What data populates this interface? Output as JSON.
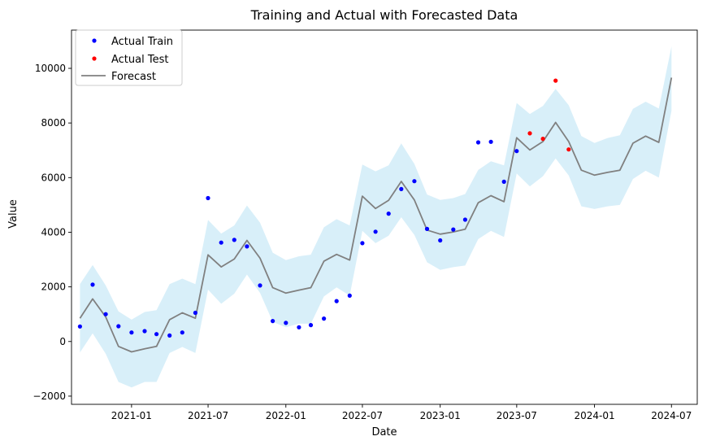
{
  "chart_data": {
    "type": "line",
    "title": "Training and Actual with Forecasted Data",
    "xlabel": "Date",
    "ylabel": "Value",
    "xlim": [
      "2020-08-12",
      "2024-08-31"
    ],
    "ylim": [
      -2300,
      11400
    ],
    "x_ticks": [
      "2021-01-01",
      "2021-07-01",
      "2022-01-01",
      "2022-07-01",
      "2023-01-01",
      "2023-07-01",
      "2024-01-01",
      "2024-07-01"
    ],
    "x_tick_labels": [
      "2021-01",
      "2021-07",
      "2022-01",
      "2022-07",
      "2023-01",
      "2023-07",
      "2024-01",
      "2024-07"
    ],
    "y_ticks": [
      -2000,
      0,
      2000,
      4000,
      6000,
      8000,
      10000
    ],
    "y_tick_labels": [
      "−2000",
      "0",
      "2000",
      "4000",
      "6000",
      "8000",
      "10000"
    ],
    "grid": false,
    "legend": {
      "position": "top-left",
      "entries": [
        {
          "label": "Actual Train",
          "marker": "dot",
          "color": "#0000ff"
        },
        {
          "label": "Actual Test",
          "marker": "dot",
          "color": "#ff0000"
        },
        {
          "label": "Forecast",
          "marker": "line",
          "color": "#808080"
        }
      ]
    },
    "series": [
      {
        "name": "Actual Train",
        "kind": "scatter",
        "color": "#0000ff",
        "points": [
          {
            "x": "2020-09-01",
            "y": 550
          },
          {
            "x": "2020-10-01",
            "y": 2080
          },
          {
            "x": "2020-11-01",
            "y": 1000
          },
          {
            "x": "2020-12-01",
            "y": 560
          },
          {
            "x": "2021-01-01",
            "y": 330
          },
          {
            "x": "2021-02-01",
            "y": 380
          },
          {
            "x": "2021-03-01",
            "y": 270
          },
          {
            "x": "2021-04-01",
            "y": 220
          },
          {
            "x": "2021-05-01",
            "y": 330
          },
          {
            "x": "2021-06-01",
            "y": 1050
          },
          {
            "x": "2021-07-01",
            "y": 5250
          },
          {
            "x": "2021-08-01",
            "y": 3620
          },
          {
            "x": "2021-09-01",
            "y": 3720
          },
          {
            "x": "2021-10-01",
            "y": 3480
          },
          {
            "x": "2021-11-01",
            "y": 2050
          },
          {
            "x": "2021-12-01",
            "y": 750
          },
          {
            "x": "2022-01-01",
            "y": 680
          },
          {
            "x": "2022-02-01",
            "y": 520
          },
          {
            "x": "2022-03-01",
            "y": 600
          },
          {
            "x": "2022-04-01",
            "y": 840
          },
          {
            "x": "2022-05-01",
            "y": 1480
          },
          {
            "x": "2022-06-01",
            "y": 1680
          },
          {
            "x": "2022-07-01",
            "y": 3600
          },
          {
            "x": "2022-08-01",
            "y": 4020
          },
          {
            "x": "2022-09-01",
            "y": 4680
          },
          {
            "x": "2022-10-01",
            "y": 5580
          },
          {
            "x": "2022-11-01",
            "y": 5870
          },
          {
            "x": "2022-12-01",
            "y": 4120
          },
          {
            "x": "2023-01-01",
            "y": 3700
          },
          {
            "x": "2023-02-01",
            "y": 4100
          },
          {
            "x": "2023-03-01",
            "y": 4460
          },
          {
            "x": "2023-04-01",
            "y": 7290
          },
          {
            "x": "2023-05-01",
            "y": 7310
          },
          {
            "x": "2023-06-01",
            "y": 5850
          },
          {
            "x": "2023-07-01",
            "y": 6970
          }
        ]
      },
      {
        "name": "Actual Test",
        "kind": "scatter",
        "color": "#ff0000",
        "points": [
          {
            "x": "2023-08-01",
            "y": 7620
          },
          {
            "x": "2023-09-01",
            "y": 7420
          },
          {
            "x": "2023-10-01",
            "y": 9550
          },
          {
            "x": "2023-11-01",
            "y": 7030
          }
        ]
      },
      {
        "name": "Forecast",
        "kind": "line",
        "color": "#808080",
        "band_color": "#87ceeb",
        "points": [
          {
            "x": "2020-09-01",
            "y": 850,
            "lower": -400,
            "upper": 2100
          },
          {
            "x": "2020-10-01",
            "y": 1560,
            "lower": 300,
            "upper": 2800
          },
          {
            "x": "2020-11-01",
            "y": 900,
            "lower": -450,
            "upper": 2050
          },
          {
            "x": "2020-12-01",
            "y": -180,
            "lower": -1480,
            "upper": 1100
          },
          {
            "x": "2021-01-01",
            "y": -380,
            "lower": -1680,
            "upper": 800
          },
          {
            "x": "2021-02-01",
            "y": -270,
            "lower": -1480,
            "upper": 1080
          },
          {
            "x": "2021-03-01",
            "y": -180,
            "lower": -1480,
            "upper": 1150
          },
          {
            "x": "2021-04-01",
            "y": 800,
            "lower": -420,
            "upper": 2100
          },
          {
            "x": "2021-05-01",
            "y": 1050,
            "lower": -200,
            "upper": 2300
          },
          {
            "x": "2021-06-01",
            "y": 850,
            "lower": -420,
            "upper": 2100
          },
          {
            "x": "2021-07-01",
            "y": 3170,
            "lower": 1900,
            "upper": 4450
          },
          {
            "x": "2021-08-01",
            "y": 2730,
            "lower": 1380,
            "upper": 3950
          },
          {
            "x": "2021-09-01",
            "y": 3020,
            "lower": 1750,
            "upper": 4250
          },
          {
            "x": "2021-10-01",
            "y": 3700,
            "lower": 2450,
            "upper": 4980
          },
          {
            "x": "2021-11-01",
            "y": 3050,
            "lower": 1780,
            "upper": 4350
          },
          {
            "x": "2021-12-01",
            "y": 1970,
            "lower": 720,
            "upper": 3250
          },
          {
            "x": "2022-01-01",
            "y": 1770,
            "lower": 520,
            "upper": 2980
          },
          {
            "x": "2022-02-01",
            "y": 1880,
            "lower": 650,
            "upper": 3120
          },
          {
            "x": "2022-03-01",
            "y": 1970,
            "lower": 650,
            "upper": 3180
          },
          {
            "x": "2022-04-01",
            "y": 2940,
            "lower": 1650,
            "upper": 4180
          },
          {
            "x": "2022-05-01",
            "y": 3190,
            "lower": 1980,
            "upper": 4480
          },
          {
            "x": "2022-06-01",
            "y": 2980,
            "lower": 1680,
            "upper": 4250
          },
          {
            "x": "2022-07-01",
            "y": 5320,
            "lower": 4050,
            "upper": 6480
          },
          {
            "x": "2022-08-01",
            "y": 4870,
            "lower": 3600,
            "upper": 6230
          },
          {
            "x": "2022-09-01",
            "y": 5170,
            "lower": 3870,
            "upper": 6450
          },
          {
            "x": "2022-10-01",
            "y": 5860,
            "lower": 4550,
            "upper": 7250
          },
          {
            "x": "2022-11-01",
            "y": 5180,
            "lower": 3900,
            "upper": 6500
          },
          {
            "x": "2022-12-01",
            "y": 4080,
            "lower": 2900,
            "upper": 5380
          },
          {
            "x": "2023-01-01",
            "y": 3930,
            "lower": 2620,
            "upper": 5180
          },
          {
            "x": "2023-02-01",
            "y": 4010,
            "lower": 2720,
            "upper": 5250
          },
          {
            "x": "2023-03-01",
            "y": 4110,
            "lower": 2780,
            "upper": 5400
          },
          {
            "x": "2023-04-01",
            "y": 5080,
            "lower": 3750,
            "upper": 6280
          },
          {
            "x": "2023-05-01",
            "y": 5340,
            "lower": 4050,
            "upper": 6600
          },
          {
            "x": "2023-06-01",
            "y": 5120,
            "lower": 3830,
            "upper": 6450
          },
          {
            "x": "2023-07-01",
            "y": 7460,
            "lower": 6150,
            "upper": 8730
          },
          {
            "x": "2023-08-01",
            "y": 7010,
            "lower": 5680,
            "upper": 8330
          },
          {
            "x": "2023-09-01",
            "y": 7320,
            "lower": 6050,
            "upper": 8620
          },
          {
            "x": "2023-10-01",
            "y": 8020,
            "lower": 6700,
            "upper": 9250
          },
          {
            "x": "2023-11-01",
            "y": 7320,
            "lower": 6080,
            "upper": 8650
          },
          {
            "x": "2023-12-01",
            "y": 6270,
            "lower": 4950,
            "upper": 7520
          },
          {
            "x": "2024-01-01",
            "y": 6090,
            "lower": 4850,
            "upper": 7270
          },
          {
            "x": "2024-02-01",
            "y": 6190,
            "lower": 4950,
            "upper": 7450
          },
          {
            "x": "2024-03-01",
            "y": 6270,
            "lower": 5000,
            "upper": 7550
          },
          {
            "x": "2024-04-01",
            "y": 7260,
            "lower": 5950,
            "upper": 8520
          },
          {
            "x": "2024-05-01",
            "y": 7520,
            "lower": 6250,
            "upper": 8780
          },
          {
            "x": "2024-06-01",
            "y": 7290,
            "lower": 6000,
            "upper": 8530
          },
          {
            "x": "2024-07-01",
            "y": 9660,
            "lower": 8450,
            "upper": 10800
          }
        ]
      }
    ]
  }
}
